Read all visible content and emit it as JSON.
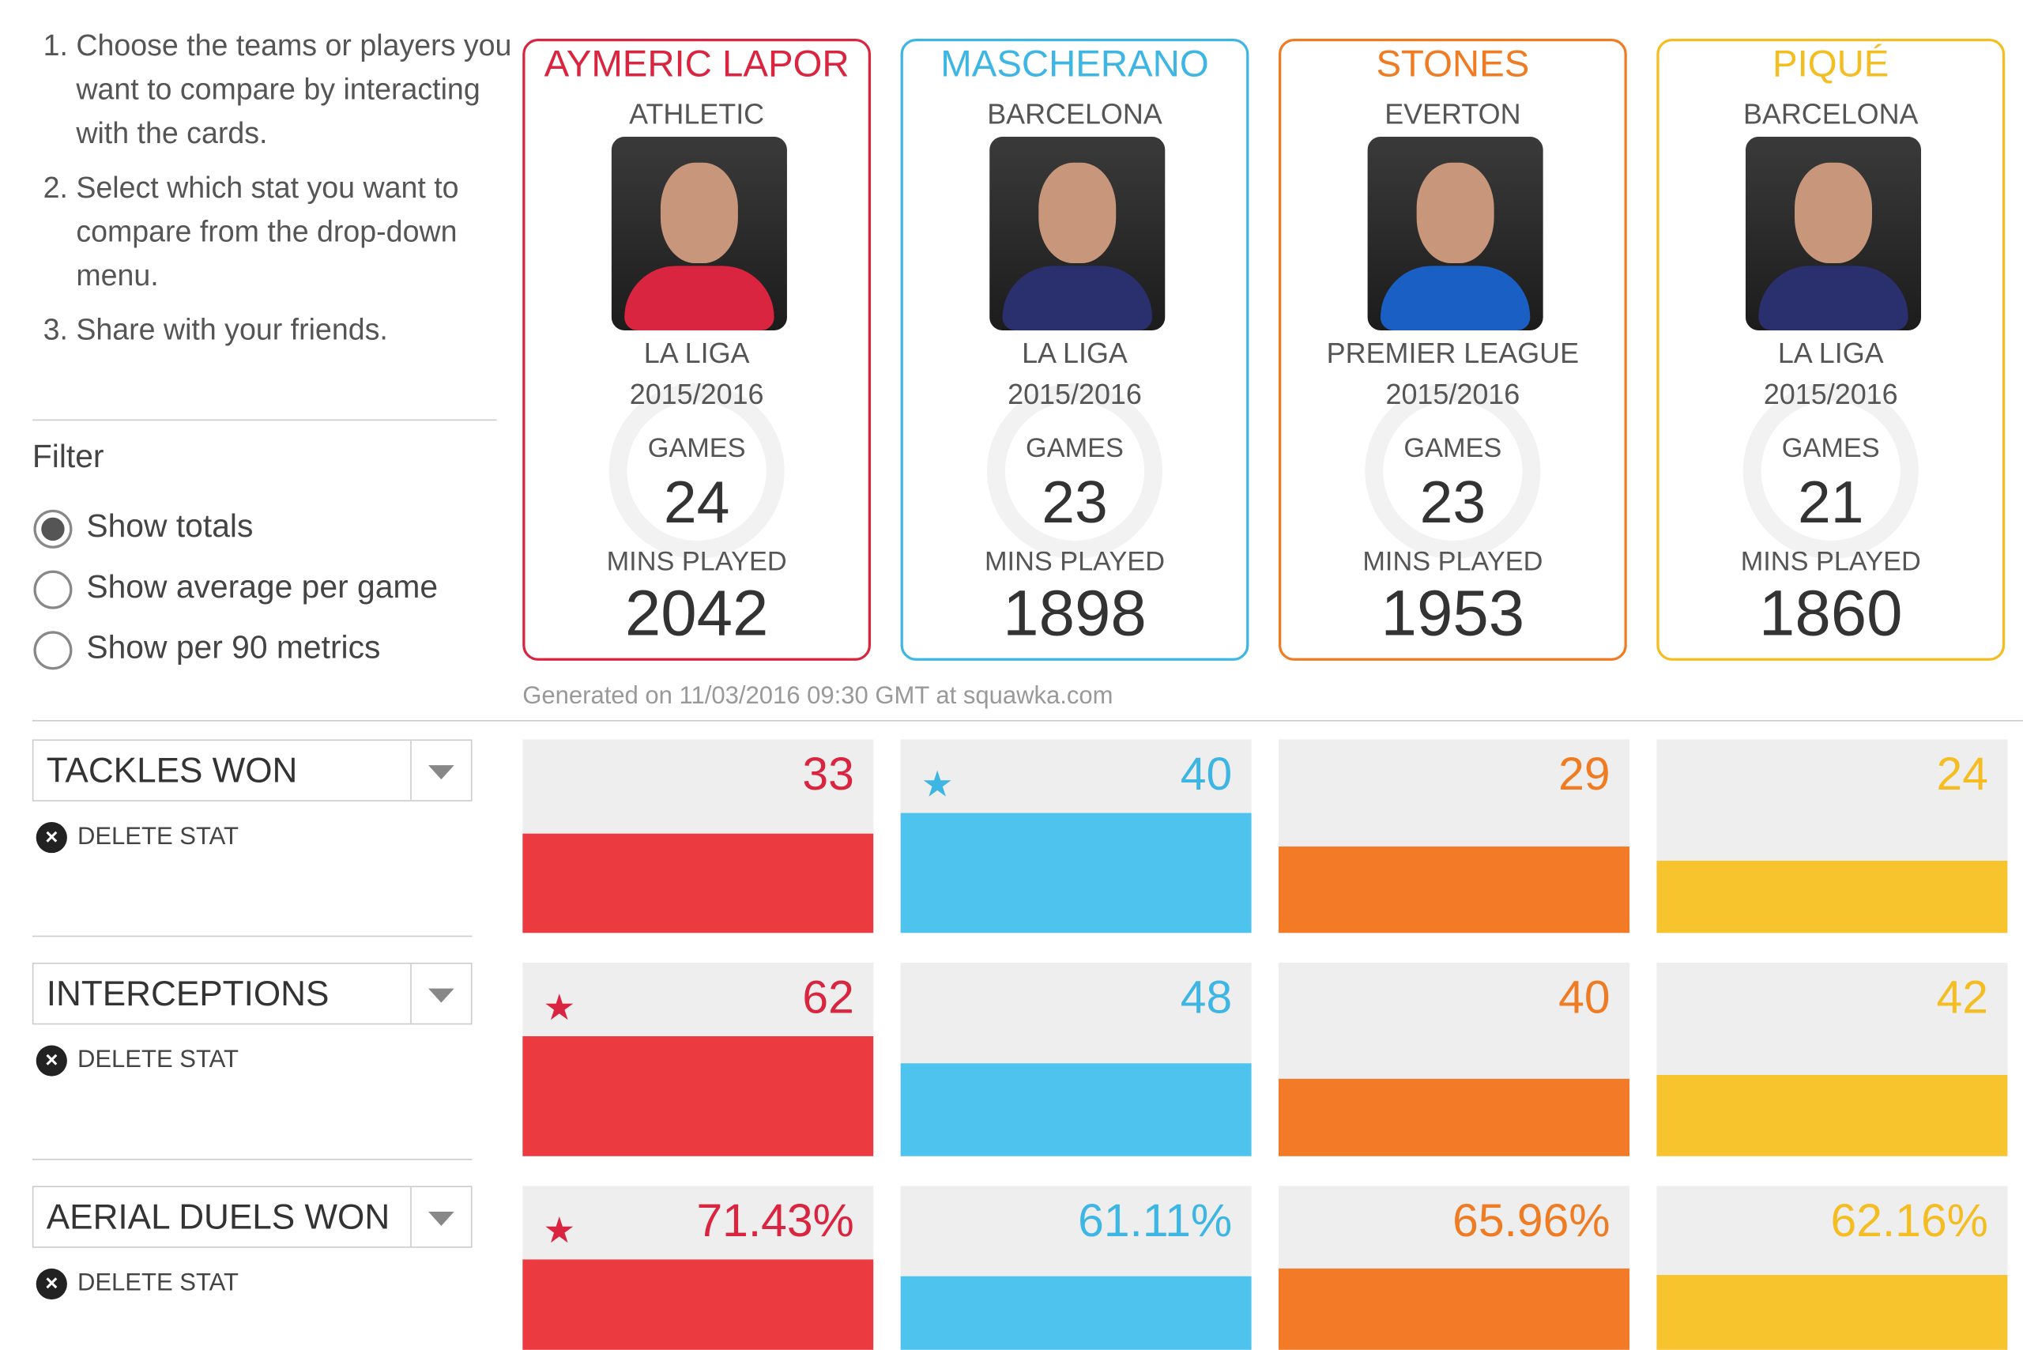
{
  "instructions": [
    "Choose the teams or players you want to compare by interacting with the cards.",
    "Select which stat you want to compare from the drop-down menu.",
    "Share with your friends."
  ],
  "filter": {
    "title": "Filter",
    "options": [
      "Show totals",
      "Show average per game",
      "Show per 90 metrics"
    ],
    "selected": 0
  },
  "labels": {
    "games": "GAMES",
    "mins": "MINS PLAYED",
    "delete": "DELETE STAT"
  },
  "players": [
    {
      "name": "AYMERIC LAPOR",
      "team": "ATHLETIC",
      "league": "LA LIGA",
      "season": "2015/2016",
      "games": 24,
      "mins": 2042,
      "color": "#d9253f",
      "bar_color": "#ec3b40"
    },
    {
      "name": "MASCHERANO",
      "team": "BARCELONA",
      "league": "LA LIGA",
      "season": "2015/2016",
      "games": 23,
      "mins": 1898,
      "color": "#3db6e4",
      "bar_color": "#4dc3ee"
    },
    {
      "name": "STONES",
      "team": "EVERTON",
      "league": "PREMIER LEAGUE",
      "season": "2015/2016",
      "games": 23,
      "mins": 1953,
      "color": "#ef7b22",
      "bar_color": "#f37b27"
    },
    {
      "name": "PIQUÉ",
      "team": "BARCELONA",
      "league": "LA LIGA",
      "season": "2015/2016",
      "games": 21,
      "mins": 1860,
      "color": "#f4bd22",
      "bar_color": "#f8c42d"
    }
  ],
  "generated": "Generated on 11/03/2016 09:30 GMT at squawka.com",
  "stats": [
    {
      "name": "TACKLES WON",
      "values": [
        33,
        40,
        29,
        24
      ]
    },
    {
      "name": "INTERCEPTIONS",
      "values": [
        62,
        48,
        40,
        42
      ]
    },
    {
      "name": "AERIAL DUELS WON %",
      "values": [
        71.43,
        61.11,
        65.96,
        62.16
      ],
      "value_labels": [
        "71.43%",
        "61.11%",
        "65.96%",
        "62.16%"
      ]
    }
  ]
}
